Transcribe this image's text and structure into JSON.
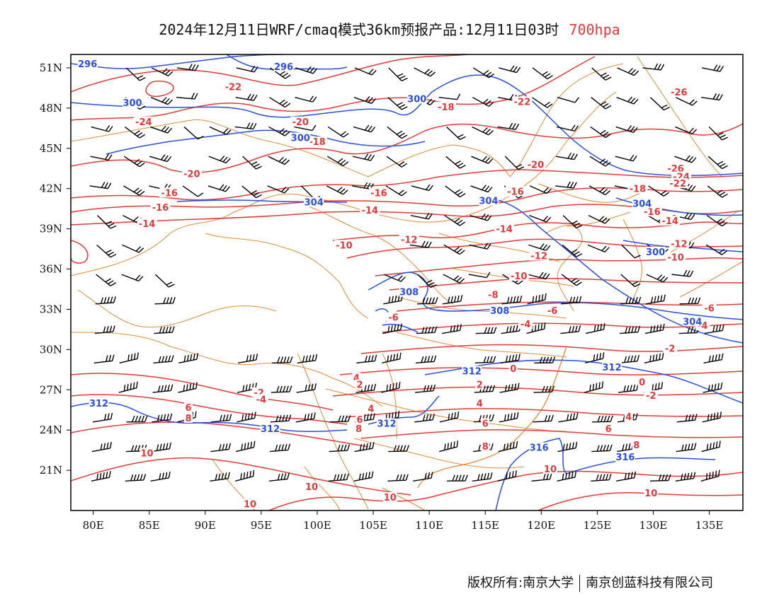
{
  "title": {
    "main": "2024年12月11日WRF/cmaq模式36km预报产品:12月11日03时",
    "level": "700hpa",
    "level_color": "#e03a3a"
  },
  "footer": {
    "left": "版权所有:南京大学",
    "right": "南京创蓝科技有限公司"
  },
  "colors": {
    "temperature": "#e03a3a",
    "theta": "#2a4fd8",
    "boundary": "#e08a3c",
    "wind": "#000000"
  },
  "axes": {
    "lon_ticks": [
      "80E",
      "85E",
      "90E",
      "95E",
      "100E",
      "105E",
      "110E",
      "115E",
      "120E",
      "125E",
      "130E",
      "135E"
    ],
    "lat_ticks": [
      "51N",
      "48N",
      "45N",
      "42N",
      "39N",
      "36N",
      "33N",
      "30N",
      "27N",
      "24N",
      "21N"
    ],
    "lon_range": [
      78,
      138
    ],
    "lat_range": [
      18,
      52
    ]
  },
  "labels": {
    "temperature": [
      {
        "text": "-22",
        "lon": 92.5,
        "lat": 49.5
      },
      {
        "text": "-24",
        "lon": 84.5,
        "lat": 46.9
      },
      {
        "text": "-20",
        "lon": 98.5,
        "lat": 46.9
      },
      {
        "text": "-18",
        "lon": 100.0,
        "lat": 45.4
      },
      {
        "text": "-18",
        "lon": 111.5,
        "lat": 48.0
      },
      {
        "text": "-20",
        "lon": 88.8,
        "lat": 43.0
      },
      {
        "text": "-22",
        "lon": 118.3,
        "lat": 48.4
      },
      {
        "text": "-26",
        "lon": 132.3,
        "lat": 49.1
      },
      {
        "text": "-20",
        "lon": 119.5,
        "lat": 43.7
      },
      {
        "text": "-26",
        "lon": 132.0,
        "lat": 43.4
      },
      {
        "text": "-24",
        "lon": 132.5,
        "lat": 42.8
      },
      {
        "text": "-22",
        "lon": 132.2,
        "lat": 42.3
      },
      {
        "text": "-16",
        "lon": 86.8,
        "lat": 41.6
      },
      {
        "text": "-16",
        "lon": 86.0,
        "lat": 40.5
      },
      {
        "text": "-14",
        "lon": 84.8,
        "lat": 39.3
      },
      {
        "text": "-16",
        "lon": 105.5,
        "lat": 41.6
      },
      {
        "text": "-14",
        "lon": 104.7,
        "lat": 40.3
      },
      {
        "text": "-16",
        "lon": 117.7,
        "lat": 41.7
      },
      {
        "text": "-18",
        "lon": 128.6,
        "lat": 41.9
      },
      {
        "text": "-16",
        "lon": 129.9,
        "lat": 40.2
      },
      {
        "text": "-14",
        "lon": 131.5,
        "lat": 39.5
      },
      {
        "text": "-14",
        "lon": 116.7,
        "lat": 38.9
      },
      {
        "text": "-12",
        "lon": 108.2,
        "lat": 38.1
      },
      {
        "text": "-10",
        "lon": 102.4,
        "lat": 37.7
      },
      {
        "text": "-12",
        "lon": 119.8,
        "lat": 36.9
      },
      {
        "text": "-12",
        "lon": 132.3,
        "lat": 37.8
      },
      {
        "text": "-10",
        "lon": 132.0,
        "lat": 36.8
      },
      {
        "text": "-10",
        "lon": 118.0,
        "lat": 35.4
      },
      {
        "text": "-8",
        "lon": 115.7,
        "lat": 34.0
      },
      {
        "text": "-6",
        "lon": 121.0,
        "lat": 32.8
      },
      {
        "text": "-6",
        "lon": 106.8,
        "lat": 32.3
      },
      {
        "text": "-4",
        "lon": 118.6,
        "lat": 31.8
      },
      {
        "text": "-4",
        "lon": 134.4,
        "lat": 31.7
      },
      {
        "text": "-6",
        "lon": 135.0,
        "lat": 33.0
      },
      {
        "text": "-2",
        "lon": 131.5,
        "lat": 30.0
      },
      {
        "text": "0",
        "lon": 117.5,
        "lat": 28.5
      },
      {
        "text": "0",
        "lon": 129.0,
        "lat": 27.5
      },
      {
        "text": "2",
        "lon": 114.5,
        "lat": 27.3
      },
      {
        "text": "-2",
        "lon": 129.8,
        "lat": 26.5
      },
      {
        "text": "4",
        "lon": 114.5,
        "lat": 25.9
      },
      {
        "text": "4",
        "lon": 127.8,
        "lat": 24.9
      },
      {
        "text": "6",
        "lon": 126.0,
        "lat": 24.0
      },
      {
        "text": "8",
        "lon": 128.5,
        "lat": 22.8
      },
      {
        "text": "6",
        "lon": 115.0,
        "lat": 24.4
      },
      {
        "text": "8",
        "lon": 115.0,
        "lat": 22.7
      },
      {
        "text": "-2",
        "lon": 94.8,
        "lat": 26.7
      },
      {
        "text": "-4",
        "lon": 95.0,
        "lat": 26.2
      },
      {
        "text": "6",
        "lon": 88.5,
        "lat": 25.6
      },
      {
        "text": "8",
        "lon": 88.5,
        "lat": 24.8
      },
      {
        "text": "4",
        "lon": 103.5,
        "lat": 27.8
      },
      {
        "text": "2",
        "lon": 103.8,
        "lat": 27.3
      },
      {
        "text": "4",
        "lon": 104.8,
        "lat": 25.5
      },
      {
        "text": "6",
        "lon": 103.8,
        "lat": 24.7
      },
      {
        "text": "8",
        "lon": 103.7,
        "lat": 24.0
      },
      {
        "text": "10",
        "lon": 84.8,
        "lat": 22.2
      },
      {
        "text": "10",
        "lon": 99.5,
        "lat": 19.7
      },
      {
        "text": "10",
        "lon": 94.0,
        "lat": 18.4
      },
      {
        "text": "10",
        "lon": 106.5,
        "lat": 18.9
      },
      {
        "text": "10",
        "lon": 120.8,
        "lat": 21.0
      },
      {
        "text": "10",
        "lon": 129.8,
        "lat": 19.2
      }
    ],
    "theta": [
      {
        "text": "296",
        "lon": 79.5,
        "lat": 51.2
      },
      {
        "text": "296",
        "lon": 97.0,
        "lat": 51.0
      },
      {
        "text": "300",
        "lon": 83.5,
        "lat": 48.3
      },
      {
        "text": "300",
        "lon": 98.5,
        "lat": 45.7
      },
      {
        "text": "300",
        "lon": 108.9,
        "lat": 48.6
      },
      {
        "text": "304",
        "lon": 99.7,
        "lat": 40.9
      },
      {
        "text": "304",
        "lon": 115.3,
        "lat": 41.0
      },
      {
        "text": "304",
        "lon": 129.0,
        "lat": 40.8
      },
      {
        "text": "300",
        "lon": 130.2,
        "lat": 37.2
      },
      {
        "text": "308",
        "lon": 108.2,
        "lat": 34.2
      },
      {
        "text": "308",
        "lon": 116.3,
        "lat": 32.8
      },
      {
        "text": "304",
        "lon": 133.5,
        "lat": 32.0
      },
      {
        "text": "312",
        "lon": 113.8,
        "lat": 28.3
      },
      {
        "text": "312",
        "lon": 80.5,
        "lat": 25.9
      },
      {
        "text": "312",
        "lon": 95.8,
        "lat": 24.0
      },
      {
        "text": "312",
        "lon": 106.2,
        "lat": 24.4
      },
      {
        "text": "312",
        "lon": 126.3,
        "lat": 28.6
      },
      {
        "text": "316",
        "lon": 119.8,
        "lat": 22.6
      },
      {
        "text": "316",
        "lon": 127.5,
        "lat": 21.9
      }
    ]
  }
}
